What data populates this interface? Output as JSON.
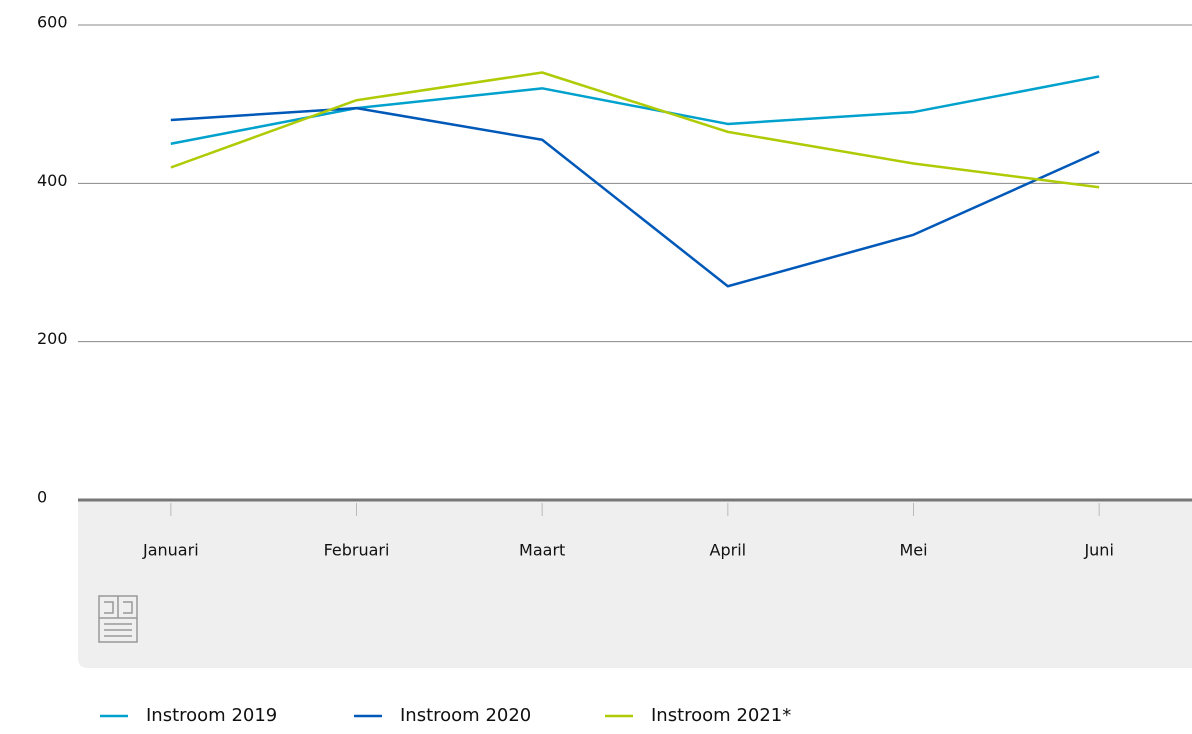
{
  "chart_data": {
    "type": "line",
    "categories": [
      "Januari",
      "Februari",
      "Maart",
      "April",
      "Mei",
      "Juni"
    ],
    "series": [
      {
        "name": "Instroom 2019",
        "color": "#00a1cd",
        "values": [
          450,
          495,
          520,
          475,
          490,
          535
        ]
      },
      {
        "name": "Instroom 2020",
        "color": "#0058b8",
        "values": [
          480,
          495,
          455,
          270,
          335,
          440
        ]
      },
      {
        "name": "Instroom 2021*",
        "color": "#afcb05",
        "values": [
          420,
          505,
          540,
          465,
          425,
          395
        ]
      }
    ],
    "ylim": [
      0,
      600
    ],
    "yticks": [
      0,
      200,
      400,
      600
    ],
    "grid": true
  }
}
